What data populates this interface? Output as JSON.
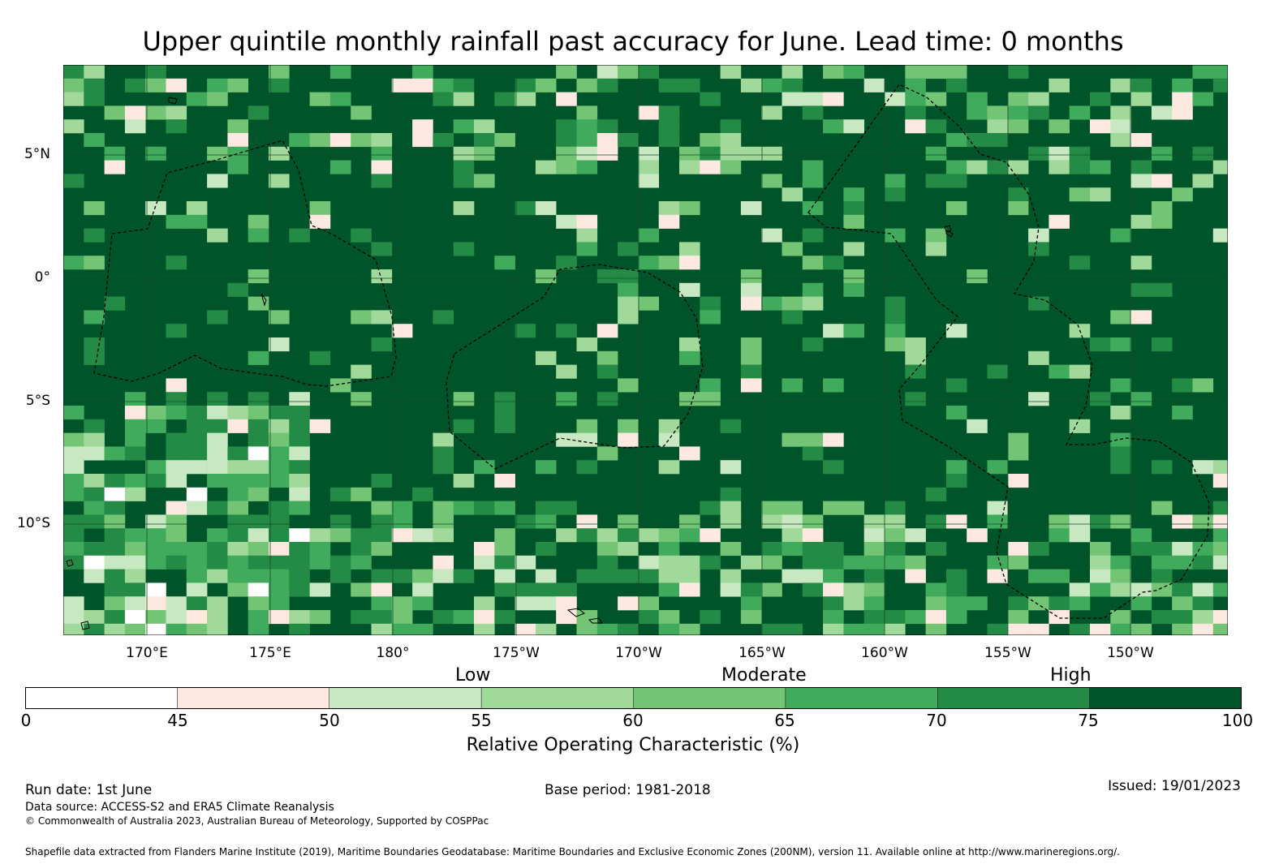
{
  "title": "Upper quintile monthly rainfall past accuracy for June. Lead time: 0 months",
  "map": {
    "lat_labels": [
      "5°N",
      "0°",
      "5°S",
      "10°S"
    ],
    "lon_labels": [
      "170°E",
      "175°E",
      "180°",
      "175°W",
      "170°W",
      "165°W",
      "160°W",
      "155°W",
      "150°W"
    ],
    "background_color": "#00542a",
    "grid_color": "#174a2a",
    "boundary_color": "#000000"
  },
  "colorbar": {
    "categories": [
      "Low",
      "Moderate",
      "High"
    ],
    "ticks": [
      "0",
      "45",
      "50",
      "55",
      "60",
      "65",
      "70",
      "75",
      "100"
    ],
    "colors": [
      "#ffffff",
      "#fee9e0",
      "#c7e8c0",
      "#a1d99b",
      "#74c476",
      "#41ab5d",
      "#238b45",
      "#00542a"
    ],
    "label": "Relative Operating Characteristic (%)"
  },
  "footer": {
    "run_date": "Run date: 1st June",
    "base_period": "Base period: 1981-2018",
    "issued": "Issued: 19/01/2023",
    "data_source": "Data source: ACCESS-S2 and ERA5 Climate Reanalysis",
    "copyright": "© Commonwealth of Australia 2023, Australian Bureau of Meteorology, Supported by COSPPac",
    "shapefile": "Shapefile data extracted from Flanders Marine Institute (2019), Maritime Boundaries Geodatabase: Maritime Boundaries and Exclusive Economic Zones (200NM), version 11. Available online at http://www.marineregions.org/."
  }
}
